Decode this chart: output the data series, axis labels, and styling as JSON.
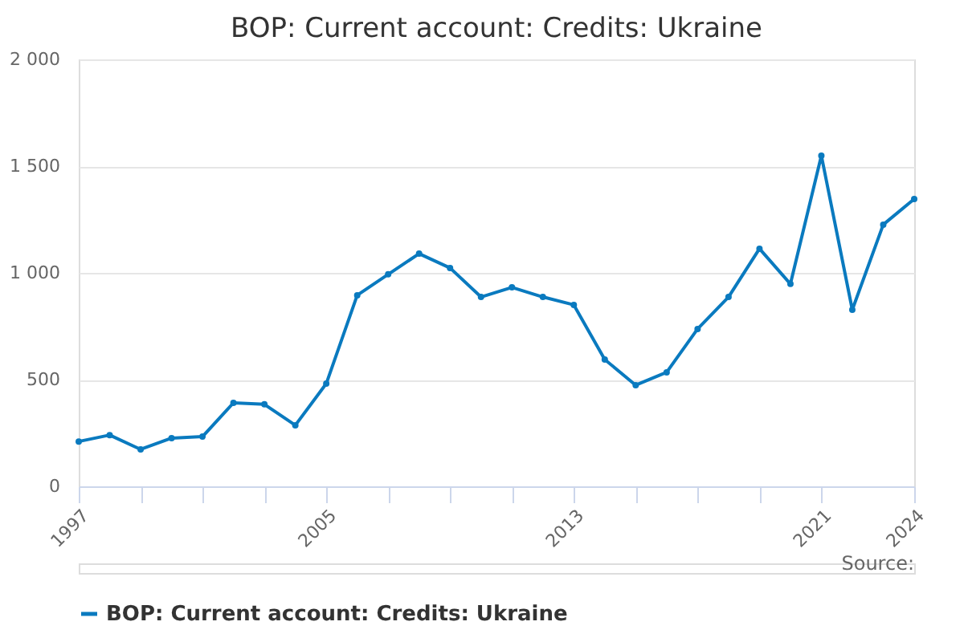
{
  "chart_data": {
    "type": "line",
    "title": "BOP: Current account: Credits: Ukraine",
    "x": [
      1997,
      1998,
      1999,
      2000,
      2001,
      2002,
      2003,
      2004,
      2005,
      2006,
      2007,
      2008,
      2009,
      2010,
      2011,
      2012,
      2013,
      2014,
      2015,
      2016,
      2017,
      2018,
      2019,
      2020,
      2021,
      2022,
      2023,
      2024
    ],
    "series": [
      {
        "name": "BOP: Current account: Credits: Ukraine",
        "color": "#0a7abf",
        "values": [
          210,
          240,
          173,
          226,
          233,
          391,
          384,
          286,
          481,
          895,
          993,
          1090,
          1023,
          887,
          932,
          887,
          850,
          594,
          474,
          534,
          737,
          887,
          1113,
          948,
          1549,
          827,
          1226,
          1346
        ]
      }
    ],
    "xlim": [
      1997,
      2024
    ],
    "xticks": [
      1997,
      {
        "value": 1999,
        "label": null
      },
      {
        "value": 2001,
        "label": null
      },
      {
        "value": 2003,
        "label": null
      },
      2005,
      {
        "value": 2007,
        "label": null
      },
      {
        "value": 2009,
        "label": null
      },
      {
        "value": 2011,
        "label": null
      },
      2013,
      {
        "value": 2015,
        "label": null
      },
      {
        "value": 2017,
        "label": null
      },
      {
        "value": 2019,
        "label": null
      },
      2021,
      2024
    ],
    "ylim": [
      0,
      2000
    ],
    "yticks": [
      0,
      500,
      {
        "value": 1000,
        "label": "1 000"
      },
      {
        "value": 1500,
        "label": "1 500"
      },
      {
        "value": 2000,
        "label": "2 000"
      }
    ],
    "grid": "y",
    "legend": "bottom",
    "marker": "circle",
    "line_style": "solid",
    "annotations": [
      "Source:"
    ]
  }
}
